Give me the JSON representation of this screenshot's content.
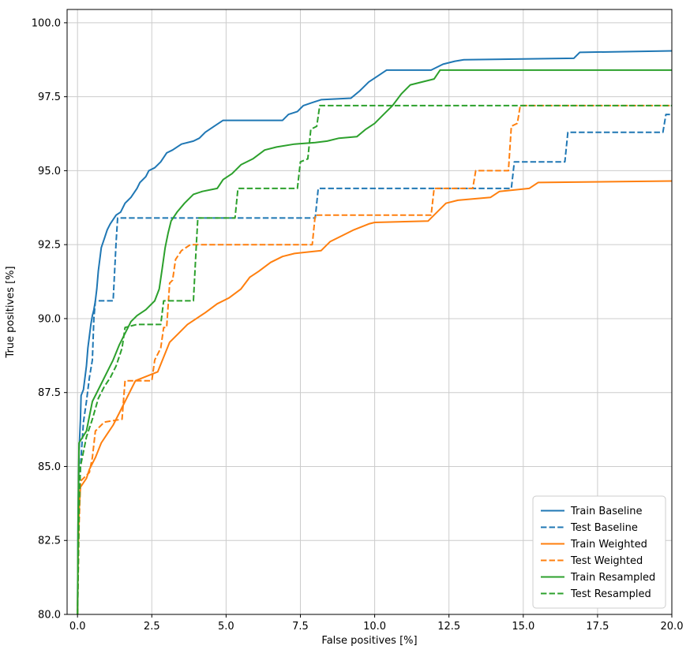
{
  "figure": {
    "background": "#ffffff"
  },
  "chart_data": {
    "type": "line",
    "title": "",
    "xlabel": "False positives [%]",
    "ylabel": "True positives [%]",
    "xlim": [
      -0.35,
      20
    ],
    "ylim": [
      80,
      100.45
    ],
    "xticks": [
      0,
      2.5,
      5,
      7.5,
      10,
      12.5,
      15,
      17.5,
      20
    ],
    "yticks": [
      80,
      82.5,
      85,
      87.5,
      90,
      92.5,
      95,
      97.5,
      100
    ],
    "grid": true,
    "grid_color": "#cccccc",
    "legend_position": "lower right",
    "series": [
      {
        "name": "Train Baseline",
        "color": "#1f77b4",
        "dash": "solid",
        "points": [
          [
            0,
            80
          ],
          [
            0.02,
            83
          ],
          [
            0.05,
            85.5
          ],
          [
            0.1,
            86.6
          ],
          [
            0.12,
            87.4
          ],
          [
            0.2,
            87.6
          ],
          [
            0.25,
            88.0
          ],
          [
            0.3,
            88.4
          ],
          [
            0.35,
            89.0
          ],
          [
            0.4,
            89.4
          ],
          [
            0.45,
            89.8
          ],
          [
            0.5,
            90.1
          ],
          [
            0.55,
            90.3
          ],
          [
            0.6,
            90.6
          ],
          [
            0.65,
            91.0
          ],
          [
            0.7,
            91.6
          ],
          [
            0.75,
            92.0
          ],
          [
            0.8,
            92.4
          ],
          [
            0.9,
            92.7
          ],
          [
            1.0,
            93.0
          ],
          [
            1.1,
            93.2
          ],
          [
            1.3,
            93.5
          ],
          [
            1.45,
            93.6
          ],
          [
            1.6,
            93.9
          ],
          [
            1.8,
            94.1
          ],
          [
            2.0,
            94.4
          ],
          [
            2.1,
            94.6
          ],
          [
            2.3,
            94.8
          ],
          [
            2.4,
            95.0
          ],
          [
            2.6,
            95.1
          ],
          [
            2.8,
            95.3
          ],
          [
            3.0,
            95.6
          ],
          [
            3.2,
            95.7
          ],
          [
            3.5,
            95.9
          ],
          [
            3.9,
            96.0
          ],
          [
            4.1,
            96.1
          ],
          [
            4.3,
            96.3
          ],
          [
            4.6,
            96.5
          ],
          [
            4.9,
            96.7
          ],
          [
            6.9,
            96.7
          ],
          [
            7.1,
            96.9
          ],
          [
            7.4,
            97.0
          ],
          [
            7.6,
            97.2
          ],
          [
            7.9,
            97.3
          ],
          [
            8.2,
            97.4
          ],
          [
            9.2,
            97.45
          ],
          [
            9.5,
            97.7
          ],
          [
            9.8,
            98.0
          ],
          [
            10.1,
            98.2
          ],
          [
            10.4,
            98.4
          ],
          [
            11.9,
            98.4
          ],
          [
            12.3,
            98.6
          ],
          [
            12.7,
            98.7
          ],
          [
            13.0,
            98.75
          ],
          [
            16.7,
            98.8
          ],
          [
            16.9,
            99.0
          ],
          [
            20,
            99.05
          ]
        ]
      },
      {
        "name": "Test Baseline",
        "color": "#1f77b4",
        "dash": "dashed",
        "points": [
          [
            0,
            80
          ],
          [
            0.05,
            83.5
          ],
          [
            0.1,
            85.0
          ],
          [
            0.2,
            86.5
          ],
          [
            0.3,
            87.2
          ],
          [
            0.4,
            88.0
          ],
          [
            0.5,
            88.6
          ],
          [
            0.55,
            90.0
          ],
          [
            0.6,
            90.6
          ],
          [
            1.2,
            90.6
          ],
          [
            1.25,
            91.6
          ],
          [
            1.3,
            92.6
          ],
          [
            1.35,
            93.4
          ],
          [
            8.0,
            93.4
          ],
          [
            8.1,
            94.4
          ],
          [
            14.6,
            94.4
          ],
          [
            14.7,
            95.3
          ],
          [
            16.4,
            95.3
          ],
          [
            16.5,
            96.3
          ],
          [
            19.7,
            96.3
          ],
          [
            19.8,
            96.9
          ],
          [
            20,
            96.9
          ]
        ]
      },
      {
        "name": "Train Weighted",
        "color": "#ff7f0e",
        "dash": "solid",
        "points": [
          [
            0,
            80
          ],
          [
            0.02,
            82
          ],
          [
            0.05,
            83.5
          ],
          [
            0.1,
            84.3
          ],
          [
            0.3,
            84.6
          ],
          [
            0.4,
            84.9
          ],
          [
            0.6,
            85.3
          ],
          [
            0.8,
            85.8
          ],
          [
            1.0,
            86.1
          ],
          [
            1.2,
            86.4
          ],
          [
            1.4,
            86.8
          ],
          [
            1.6,
            87.2
          ],
          [
            1.8,
            87.6
          ],
          [
            1.95,
            87.9
          ],
          [
            2.7,
            88.2
          ],
          [
            2.9,
            88.7
          ],
          [
            3.1,
            89.2
          ],
          [
            3.4,
            89.5
          ],
          [
            3.7,
            89.8
          ],
          [
            4.0,
            90.0
          ],
          [
            4.3,
            90.2
          ],
          [
            4.7,
            90.5
          ],
          [
            5.1,
            90.7
          ],
          [
            5.5,
            91.0
          ],
          [
            5.8,
            91.4
          ],
          [
            6.1,
            91.6
          ],
          [
            6.5,
            91.9
          ],
          [
            6.9,
            92.1
          ],
          [
            7.3,
            92.2
          ],
          [
            8.2,
            92.3
          ],
          [
            8.5,
            92.6
          ],
          [
            8.9,
            92.8
          ],
          [
            9.3,
            93.0
          ],
          [
            9.8,
            93.2
          ],
          [
            10.0,
            93.25
          ],
          [
            11.8,
            93.3
          ],
          [
            12.1,
            93.6
          ],
          [
            12.4,
            93.9
          ],
          [
            12.8,
            94.0
          ],
          [
            13.9,
            94.1
          ],
          [
            14.2,
            94.3
          ],
          [
            15.2,
            94.4
          ],
          [
            15.5,
            94.6
          ],
          [
            20,
            94.65
          ]
        ]
      },
      {
        "name": "Test Weighted",
        "color": "#ff7f0e",
        "dash": "dashed",
        "points": [
          [
            0,
            80
          ],
          [
            0.05,
            83
          ],
          [
            0.1,
            84.5
          ],
          [
            0.4,
            84.8
          ],
          [
            0.5,
            85.3
          ],
          [
            0.6,
            86.2
          ],
          [
            0.9,
            86.5
          ],
          [
            1.5,
            86.6
          ],
          [
            1.6,
            87.9
          ],
          [
            2.5,
            87.9
          ],
          [
            2.6,
            88.6
          ],
          [
            2.8,
            89.0
          ],
          [
            2.9,
            89.7
          ],
          [
            3.0,
            89.7
          ],
          [
            3.1,
            91.2
          ],
          [
            3.2,
            91.3
          ],
          [
            3.3,
            92.0
          ],
          [
            3.5,
            92.3
          ],
          [
            3.8,
            92.5
          ],
          [
            7.9,
            92.5
          ],
          [
            8.0,
            93.5
          ],
          [
            11.9,
            93.5
          ],
          [
            12.0,
            94.4
          ],
          [
            13.3,
            94.4
          ],
          [
            13.4,
            95.0
          ],
          [
            14.5,
            95.0
          ],
          [
            14.6,
            96.5
          ],
          [
            14.8,
            96.6
          ],
          [
            14.9,
            97.2
          ],
          [
            20,
            97.2
          ]
        ]
      },
      {
        "name": "Train Resampled",
        "color": "#2ca02c",
        "dash": "solid",
        "points": [
          [
            0,
            80
          ],
          [
            0.02,
            83
          ],
          [
            0.05,
            85.8
          ],
          [
            0.3,
            86.2
          ],
          [
            0.5,
            87.2
          ],
          [
            0.6,
            87.4
          ],
          [
            0.8,
            87.8
          ],
          [
            1.0,
            88.2
          ],
          [
            1.2,
            88.6
          ],
          [
            1.4,
            89.1
          ],
          [
            1.6,
            89.5
          ],
          [
            1.8,
            89.9
          ],
          [
            2.0,
            90.1
          ],
          [
            2.3,
            90.3
          ],
          [
            2.6,
            90.6
          ],
          [
            2.75,
            91.0
          ],
          [
            2.85,
            91.7
          ],
          [
            2.95,
            92.4
          ],
          [
            3.05,
            92.9
          ],
          [
            3.15,
            93.3
          ],
          [
            3.35,
            93.6
          ],
          [
            3.6,
            93.9
          ],
          [
            3.9,
            94.2
          ],
          [
            4.2,
            94.3
          ],
          [
            4.7,
            94.4
          ],
          [
            4.9,
            94.7
          ],
          [
            5.2,
            94.9
          ],
          [
            5.5,
            95.2
          ],
          [
            5.9,
            95.4
          ],
          [
            6.3,
            95.7
          ],
          [
            6.7,
            95.8
          ],
          [
            7.3,
            95.9
          ],
          [
            8.0,
            95.95
          ],
          [
            8.4,
            96.0
          ],
          [
            8.8,
            96.1
          ],
          [
            9.4,
            96.15
          ],
          [
            9.7,
            96.4
          ],
          [
            10.0,
            96.6
          ],
          [
            10.3,
            96.9
          ],
          [
            10.6,
            97.2
          ],
          [
            10.9,
            97.6
          ],
          [
            11.2,
            97.9
          ],
          [
            11.6,
            98.0
          ],
          [
            12.0,
            98.1
          ],
          [
            12.2,
            98.4
          ],
          [
            20,
            98.4
          ]
        ]
      },
      {
        "name": "Test Resampled",
        "color": "#2ca02c",
        "dash": "dashed",
        "points": [
          [
            0,
            80
          ],
          [
            0.05,
            83.5
          ],
          [
            0.1,
            85.0
          ],
          [
            0.3,
            86.0
          ],
          [
            0.5,
            86.6
          ],
          [
            0.7,
            87.3
          ],
          [
            0.9,
            87.7
          ],
          [
            1.1,
            88.0
          ],
          [
            1.3,
            88.4
          ],
          [
            1.5,
            89.0
          ],
          [
            1.6,
            89.7
          ],
          [
            2.0,
            89.8
          ],
          [
            2.8,
            89.8
          ],
          [
            2.9,
            90.6
          ],
          [
            3.9,
            90.6
          ],
          [
            4.0,
            92.5
          ],
          [
            4.05,
            93.4
          ],
          [
            5.3,
            93.4
          ],
          [
            5.4,
            94.4
          ],
          [
            7.4,
            94.4
          ],
          [
            7.5,
            95.3
          ],
          [
            7.75,
            95.4
          ],
          [
            7.85,
            96.4
          ],
          [
            8.05,
            96.5
          ],
          [
            8.15,
            97.2
          ],
          [
            20,
            97.2
          ]
        ]
      }
    ],
    "legend_labels": [
      "Train Baseline",
      "Test Baseline",
      "Train Weighted",
      "Test Weighted",
      "Train Resampled",
      "Test Resampled"
    ]
  }
}
